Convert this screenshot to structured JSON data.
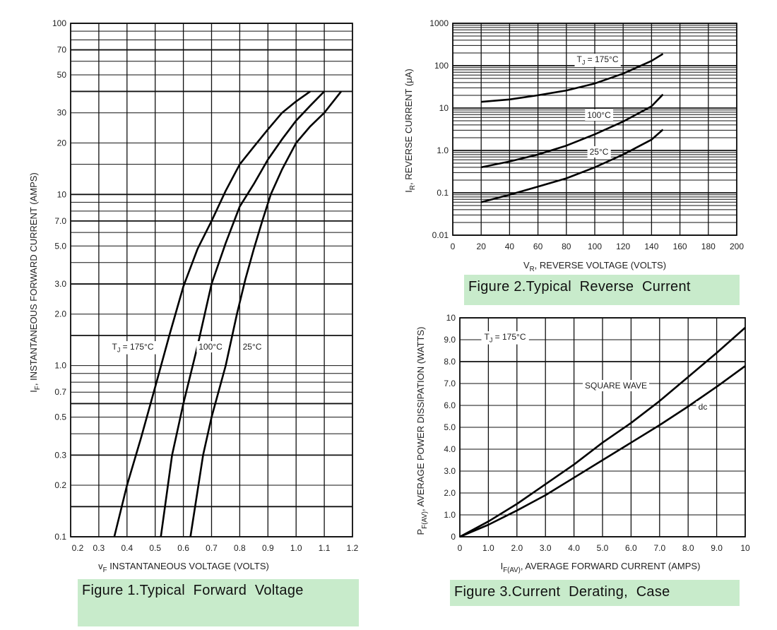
{
  "chart_data": [
    {
      "type": "line",
      "title": "Figure 1.Typical  Forward  Voltage",
      "xlabel": {
        "sym": "v",
        "sub": "F",
        "rest": " INSTANTANEOUS VOLTAGE (VOLTS)"
      },
      "ylabel": {
        "sym": "I",
        "sub": "F",
        "rest": ", INSTANTANEOUS FORWARD CURRENT (AMPS)"
      },
      "xscale": "linear",
      "yscale": "log",
      "xlim": [
        0.2,
        1.2
      ],
      "ylim": [
        0.1,
        100
      ],
      "xticks": [
        "0.2",
        "0.3",
        "0.4",
        "0.5",
        "0.6",
        "0.7",
        "0.8",
        "0.9",
        "1.0",
        "1.1",
        "1.2"
      ],
      "yticks": [
        "100",
        "70",
        "50",
        "30",
        "20",
        "10",
        "7.0",
        "5.0",
        "3.0",
        "2.0",
        "1.0",
        "0.7",
        "0.5",
        "0.3",
        "0.2",
        "0.1"
      ],
      "xgrid": [
        0.2,
        0.3,
        0.4,
        0.5,
        0.6,
        0.7,
        0.8,
        0.9,
        1.0,
        1.1,
        1.2
      ],
      "ygrid": [
        0.1,
        0.15,
        0.2,
        0.3,
        0.4,
        0.5,
        0.6,
        0.7,
        0.8,
        0.9,
        1,
        1.5,
        2,
        3,
        4,
        5,
        6,
        7,
        8,
        9,
        10,
        15,
        20,
        30,
        40,
        50,
        60,
        70,
        80,
        90,
        100
      ],
      "series": [
        {
          "name": "TJ = 175°C",
          "label": {
            "sym": "T",
            "sub": "J",
            "rest": " = 175°C"
          },
          "x": [
            0.355,
            0.4,
            0.45,
            0.5,
            0.55,
            0.6,
            0.65,
            0.7,
            0.75,
            0.8,
            0.85,
            0.9,
            0.95,
            1.0,
            1.05
          ],
          "y": [
            0.1,
            0.2,
            0.38,
            0.75,
            1.5,
            2.9,
            4.8,
            7,
            10.5,
            15,
            19,
            24,
            30,
            35,
            40
          ]
        },
        {
          "name": "100°C",
          "label": {
            "sym": "",
            "sub": "",
            "rest": "100°C"
          },
          "x": [
            0.52,
            0.56,
            0.6,
            0.65,
            0.7,
            0.75,
            0.8,
            0.85,
            0.9,
            0.95,
            1.0,
            1.05,
            1.1
          ],
          "y": [
            0.1,
            0.3,
            0.6,
            1.3,
            3.0,
            5.2,
            8.5,
            11.5,
            16,
            21,
            27,
            33,
            40
          ]
        },
        {
          "name": "25°C",
          "label": {
            "sym": "",
            "sub": "",
            "rest": "25°C"
          },
          "x": [
            0.625,
            0.67,
            0.7,
            0.75,
            0.79,
            0.82,
            0.85,
            0.88,
            0.91,
            0.95,
            1.0,
            1.05,
            1.1,
            1.16
          ],
          "y": [
            0.1,
            0.3,
            0.5,
            1.0,
            2.0,
            3.2,
            4.8,
            7,
            10,
            14,
            20,
            25,
            30,
            40
          ]
        }
      ]
    },
    {
      "type": "line",
      "title": "Figure 2.Typical  Reverse  Current",
      "xlabel": {
        "sym": "V",
        "sub": "R",
        "rest": ", REVERSE VOLTAGE (VOLTS)"
      },
      "ylabel": {
        "sym": "I",
        "sub": "R",
        "rest": ", REVERSE CURRENT (μA)"
      },
      "xscale": "linear",
      "yscale": "log",
      "xlim": [
        0,
        200
      ],
      "ylim": [
        0.01,
        1000
      ],
      "xticks": [
        "0",
        "20",
        "40",
        "60",
        "80",
        "100",
        "120",
        "140",
        "160",
        "180",
        "200"
      ],
      "yticks": [
        "1000",
        "100",
        "10",
        "1.0",
        "0.1",
        "0.01"
      ],
      "xgrid": [
        0,
        20,
        40,
        60,
        80,
        100,
        120,
        140,
        160,
        180,
        200
      ],
      "ygrid": "log-minor",
      "series": [
        {
          "name": "TJ = 175°C",
          "label": {
            "sym": "T",
            "sub": "J",
            "rest": " = 175°C"
          },
          "x": [
            20,
            40,
            60,
            80,
            100,
            120,
            140,
            148
          ],
          "y": [
            14,
            16,
            20,
            26,
            38,
            65,
            130,
            190
          ]
        },
        {
          "name": "100°C",
          "label": {
            "sym": "",
            "sub": "",
            "rest": "100°C"
          },
          "x": [
            20,
            40,
            60,
            80,
            100,
            120,
            140,
            148
          ],
          "y": [
            0.4,
            0.55,
            0.8,
            1.3,
            2.4,
            4.8,
            11,
            21
          ]
        },
        {
          "name": "25°C",
          "label": {
            "sym": "",
            "sub": "",
            "rest": "25°C"
          },
          "x": [
            20,
            40,
            60,
            80,
            100,
            120,
            140,
            148
          ],
          "y": [
            0.06,
            0.09,
            0.14,
            0.22,
            0.4,
            0.8,
            1.8,
            3.1
          ]
        }
      ]
    },
    {
      "type": "line",
      "title": "Figure 3.Current  Derating,  Case",
      "xlabel": {
        "sym": "I",
        "sub": "F(AV)",
        "rest": ", AVERAGE FORWARD CURRENT (AMPS)"
      },
      "ylabel": {
        "sym": "P",
        "sub": "F(AV)",
        "rest": ", AVERAGE POWER DISSIPATION (WATTS)"
      },
      "xscale": "linear",
      "yscale": "linear",
      "xlim": [
        0,
        10
      ],
      "ylim": [
        0,
        10
      ],
      "xticks": [
        "0",
        "1.0",
        "2.0",
        "3.0",
        "4.0",
        "5.0",
        "6.0",
        "7.0",
        "8.0",
        "9.0",
        "10"
      ],
      "yticks": [
        "10",
        "9.0",
        "8.0",
        "7.0",
        "6.0",
        "5.0",
        "4.0",
        "3.0",
        "2.0",
        "1.0",
        "0"
      ],
      "xgrid": [
        0,
        1,
        2,
        3,
        4,
        5,
        6,
        7,
        8,
        9,
        10
      ],
      "ygrid": [
        0,
        1,
        2,
        3,
        4,
        5,
        6,
        7,
        8,
        9,
        10
      ],
      "annotation": {
        "sym": "T",
        "sub": "J",
        "rest": " = 175°C"
      },
      "series": [
        {
          "name": "SQUARE WAVE",
          "label": {
            "sym": "",
            "sub": "",
            "rest": "SQUARE WAVE"
          },
          "x": [
            0,
            1,
            2,
            3,
            4,
            5,
            6,
            7,
            8,
            9,
            10
          ],
          "y": [
            0,
            0.7,
            1.5,
            2.4,
            3.3,
            4.3,
            5.2,
            6.2,
            7.3,
            8.4,
            9.55
          ]
        },
        {
          "name": "dc",
          "label": {
            "sym": "",
            "sub": "",
            "rest": "dc"
          },
          "x": [
            0,
            1,
            2,
            3,
            4,
            5,
            6,
            7,
            8,
            9,
            10
          ],
          "y": [
            0,
            0.55,
            1.2,
            1.9,
            2.7,
            3.5,
            4.3,
            5.1,
            5.95,
            6.85,
            7.8
          ]
        }
      ]
    }
  ]
}
